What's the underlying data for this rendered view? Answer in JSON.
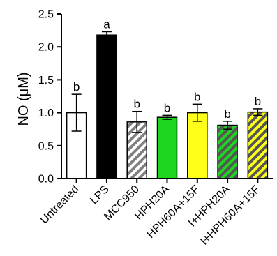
{
  "chart_data": {
    "type": "bar",
    "ylabel": "NO (μM)",
    "ylim": [
      0,
      2.5
    ],
    "yticks": [
      "0.0",
      "0.5",
      "1.0",
      "1.5",
      "2.0",
      "2.5"
    ],
    "grid": false,
    "categories": [
      "Untreated",
      "LPS",
      "MCC950",
      "HPH20A",
      "HPH60A+15F",
      "I+HPH20A",
      "I+HPH60A+15F"
    ],
    "values": [
      1.0,
      2.18,
      0.86,
      0.93,
      1.0,
      0.81,
      1.01
    ],
    "errors": [
      0.28,
      0.05,
      0.16,
      0.03,
      0.13,
      0.06,
      0.05
    ],
    "significance": [
      "b",
      "a",
      "b",
      "b",
      "b",
      "b",
      "b"
    ],
    "bar_styles": [
      {
        "fill": "#ffffff",
        "hatch": "none"
      },
      {
        "fill": "#000000",
        "hatch": "none"
      },
      {
        "fill": "#ffffff",
        "hatch": "#808080"
      },
      {
        "fill": "#1fd61f",
        "hatch": "none"
      },
      {
        "fill": "#ffff1a",
        "hatch": "none"
      },
      {
        "fill": "#1fd61f",
        "hatch": "#555555"
      },
      {
        "fill": "#ffff1a",
        "hatch": "#555555"
      }
    ]
  }
}
